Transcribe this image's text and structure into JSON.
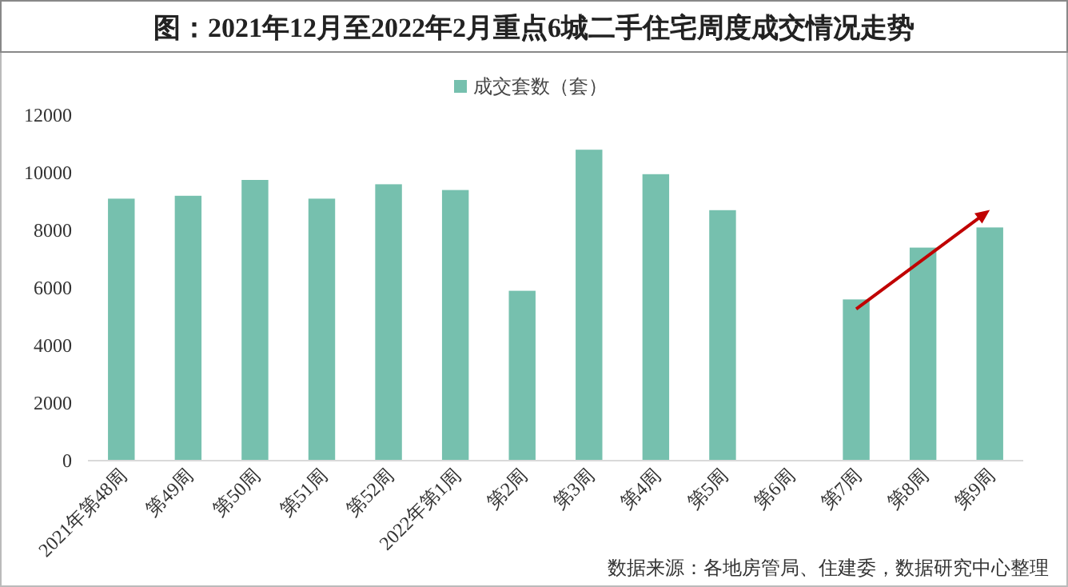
{
  "chart_data": {
    "type": "bar",
    "title": "图：2021年12月至2022年2月重点6城二手住宅周度成交情况走势",
    "categories": [
      "2021年第48周",
      "第49周",
      "第50周",
      "第51周",
      "第52周",
      "2022年第1周",
      "第2周",
      "第3周",
      "第4周",
      "第5周",
      "第6周",
      "第7周",
      "第8周",
      "第9周"
    ],
    "series": [
      {
        "name": "成交套数（套）",
        "color": "#76c0ae",
        "values": [
          9100,
          9200,
          9750,
          9100,
          9600,
          9400,
          5900,
          10800,
          9950,
          8700,
          null,
          5600,
          7400,
          8100
        ]
      }
    ],
    "ylim": [
      0,
      12000
    ],
    "yticks": [
      0,
      2000,
      4000,
      6000,
      8000,
      10000,
      12000
    ],
    "grid": false,
    "legend": "top",
    "annotations": [
      "数据来源：各地房管局、住建委，数据研究中心整理"
    ]
  }
}
